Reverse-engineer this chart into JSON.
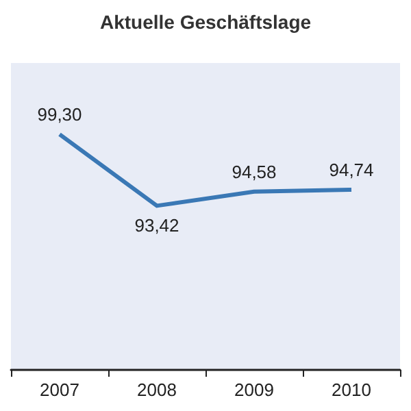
{
  "chart_data": {
    "type": "line",
    "title": "Aktuelle Geschäftslage",
    "categories": [
      "2007",
      "2008",
      "2009",
      "2010"
    ],
    "series": [
      {
        "color": "#3a78b5",
        "values": [
          99.3,
          93.42,
          94.58,
          94.74
        ],
        "value_labels": [
          "99,30",
          "93,42",
          "94,58",
          "94,74"
        ]
      }
    ],
    "tick_labels": "x",
    "marker": "none"
  }
}
